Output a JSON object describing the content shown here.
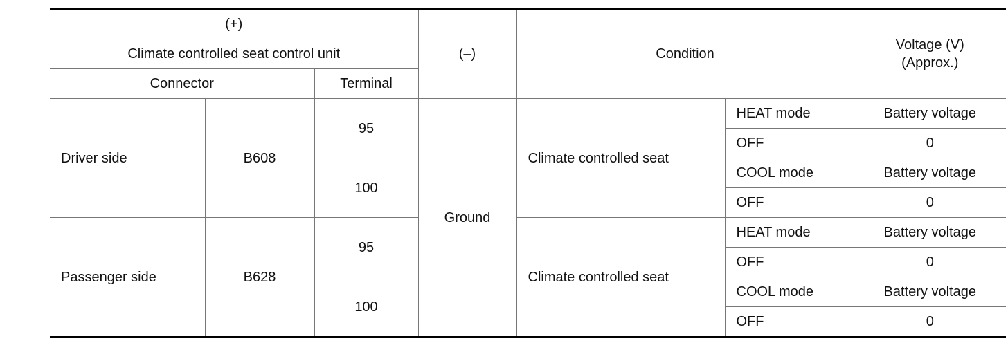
{
  "header": {
    "plus": "(+)",
    "unit": "Climate controlled seat control unit",
    "connector": "Connector",
    "terminal": "Terminal",
    "minus": "(–)",
    "condition": "Condition",
    "voltage": [
      "Voltage (V)",
      "(Approx.)"
    ]
  },
  "body": {
    "minus": "Ground",
    "groups": [
      {
        "side": "Driver side",
        "connector": "B608",
        "condition": "Climate controlled seat",
        "terminals": [
          {
            "terminal": "95",
            "states": [
              {
                "mode": "HEAT mode",
                "voltage": "Battery voltage"
              },
              {
                "mode": "OFF",
                "voltage": "0"
              }
            ]
          },
          {
            "terminal": "100",
            "states": [
              {
                "mode": "COOL mode",
                "voltage": "Battery voltage"
              },
              {
                "mode": "OFF",
                "voltage": "0"
              }
            ]
          }
        ]
      },
      {
        "side": "Passenger side",
        "connector": "B628",
        "condition": "Climate controlled seat",
        "terminals": [
          {
            "terminal": "95",
            "states": [
              {
                "mode": "HEAT mode",
                "voltage": "Battery voltage"
              },
              {
                "mode": "OFF",
                "voltage": "0"
              }
            ]
          },
          {
            "terminal": "100",
            "states": [
              {
                "mode": "COOL mode",
                "voltage": "Battery voltage"
              },
              {
                "mode": "OFF",
                "voltage": "0"
              }
            ]
          }
        ]
      }
    ]
  }
}
